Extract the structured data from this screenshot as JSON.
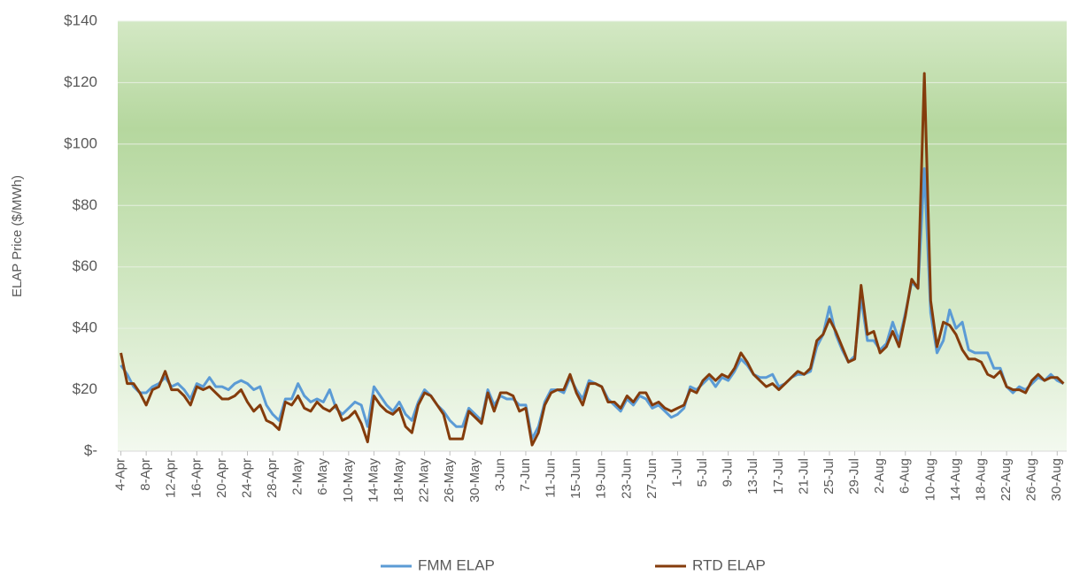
{
  "chart_data": {
    "type": "line",
    "y_label": "ELAP Price ($/MWh)",
    "categories": [
      "4-Apr",
      null,
      null,
      null,
      "8-Apr",
      null,
      null,
      null,
      "12-Apr",
      null,
      null,
      null,
      "16-Apr",
      null,
      null,
      null,
      "20-Apr",
      null,
      null,
      null,
      "24-Apr",
      null,
      null,
      null,
      "28-Apr",
      null,
      null,
      null,
      "2-May",
      null,
      null,
      null,
      "6-May",
      null,
      null,
      null,
      "10-May",
      null,
      null,
      null,
      "14-May",
      null,
      null,
      null,
      "18-May",
      null,
      null,
      null,
      "22-May",
      null,
      null,
      null,
      "26-May",
      null,
      null,
      null,
      "30-May",
      null,
      null,
      null,
      "3-Jun",
      null,
      null,
      null,
      "7-Jun",
      null,
      null,
      null,
      "11-Jun",
      null,
      null,
      null,
      "15-Jun",
      null,
      null,
      null,
      "19-Jun",
      null,
      null,
      null,
      "23-Jun",
      null,
      null,
      null,
      "27-Jun",
      null,
      null,
      null,
      "1-Jul",
      null,
      null,
      null,
      "5-Jul",
      null,
      null,
      null,
      "9-Jul",
      null,
      null,
      null,
      "13-Jul",
      null,
      null,
      null,
      "17-Jul",
      null,
      null,
      null,
      "21-Jul",
      null,
      null,
      null,
      "25-Jul",
      null,
      null,
      null,
      "29-Jul",
      null,
      null,
      null,
      "2-Aug",
      null,
      null,
      null,
      "6-Aug",
      null,
      null,
      null,
      "10-Aug",
      null,
      null,
      null,
      "14-Aug",
      null,
      null,
      null,
      "18-Aug",
      null,
      null,
      null,
      "22-Aug",
      null,
      null,
      null,
      "26-Aug",
      null,
      null,
      null,
      "30-Aug",
      null
    ],
    "series": [
      {
        "name": "FMM ELAP",
        "color": "#5b9bd5",
        "values": [
          28,
          25,
          21,
          19,
          19,
          21,
          22,
          24,
          21,
          22,
          20,
          17,
          22,
          21,
          24,
          21,
          21,
          20,
          22,
          23,
          22,
          20,
          21,
          15,
          12,
          10,
          17,
          17,
          22,
          18,
          16,
          17,
          16,
          20,
          14,
          12,
          14,
          16,
          15,
          8,
          21,
          18,
          15,
          13,
          16,
          12,
          10,
          16,
          20,
          18,
          15,
          13,
          10,
          8,
          8,
          14,
          12,
          10,
          20,
          15,
          18,
          17,
          17,
          15,
          15,
          4,
          8,
          16,
          20,
          20,
          19,
          24,
          20,
          17,
          23,
          22,
          21,
          17,
          15,
          13,
          17,
          15,
          18,
          17,
          14,
          15,
          13,
          11,
          12,
          14,
          21,
          20,
          22,
          24,
          21,
          24,
          23,
          26,
          30,
          28,
          25,
          24,
          24,
          25,
          21,
          22,
          24,
          25,
          25,
          26,
          34,
          38,
          47,
          38,
          33,
          29,
          31,
          50,
          36,
          36,
          33,
          35,
          42,
          36,
          45,
          55,
          53,
          92,
          45,
          32,
          36,
          46,
          40,
          42,
          33,
          32,
          32,
          32,
          27,
          27,
          21,
          19,
          21,
          20,
          22,
          24,
          23,
          25,
          23,
          22
        ]
      },
      {
        "name": "RTD ELAP",
        "color": "#843c0c",
        "values": [
          32,
          22,
          22,
          19,
          15,
          20,
          21,
          26,
          20,
          20,
          18,
          15,
          21,
          20,
          21,
          19,
          17,
          17,
          18,
          20,
          16,
          13,
          15,
          10,
          9,
          7,
          16,
          15,
          18,
          14,
          13,
          16,
          14,
          13,
          15,
          10,
          11,
          13,
          9,
          3,
          18,
          15,
          13,
          12,
          14,
          8,
          6,
          15,
          19,
          18,
          15,
          12,
          4,
          4,
          4,
          13,
          11,
          9,
          19,
          13,
          19,
          19,
          18,
          13,
          14,
          2,
          6,
          15,
          19,
          20,
          20,
          25,
          19,
          15,
          22,
          22,
          21,
          16,
          16,
          14,
          18,
          16,
          19,
          19,
          15,
          16,
          14,
          13,
          14,
          15,
          20,
          19,
          23,
          25,
          23,
          25,
          24,
          27,
          32,
          29,
          25,
          23,
          21,
          22,
          20,
          22,
          24,
          26,
          25,
          27,
          36,
          38,
          43,
          39,
          34,
          29,
          30,
          54,
          38,
          39,
          32,
          34,
          39,
          34,
          44,
          56,
          53,
          123,
          49,
          34,
          42,
          41,
          38,
          33,
          30,
          30,
          29,
          25,
          24,
          26,
          21,
          20,
          20,
          19,
          23,
          25,
          23,
          24,
          24,
          22
        ]
      }
    ],
    "ylim": [
      0,
      140
    ],
    "yticks": [
      {
        "value": 0,
        "label": "$-"
      },
      {
        "value": 20,
        "label": "$20"
      },
      {
        "value": 40,
        "label": "$40"
      },
      {
        "value": 60,
        "label": "$60"
      },
      {
        "value": 80,
        "label": "$80"
      },
      {
        "value": 100,
        "label": "$100"
      },
      {
        "value": 120,
        "label": "$120"
      },
      {
        "value": 140,
        "label": "$140"
      }
    ],
    "grid": true,
    "legend": "bottom"
  }
}
